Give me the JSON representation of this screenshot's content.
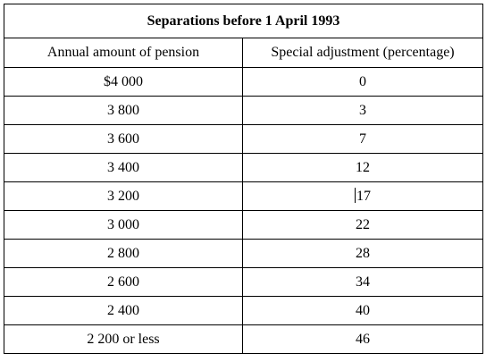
{
  "table": {
    "title": "Separations before 1 April 1993",
    "headers": [
      "Annual amount of pension",
      "Special adjustment (percentage)"
    ],
    "rows": [
      [
        "$4 000",
        "0"
      ],
      [
        "3 800",
        "3"
      ],
      [
        "3 600",
        "7"
      ],
      [
        "3 400",
        "12"
      ],
      [
        "3 200",
        "17"
      ],
      [
        "3 000",
        "22"
      ],
      [
        "2 800",
        "28"
      ],
      [
        "2 600",
        "34"
      ],
      [
        "2 400",
        "40"
      ],
      [
        "2 200 or less",
        "46"
      ]
    ]
  }
}
